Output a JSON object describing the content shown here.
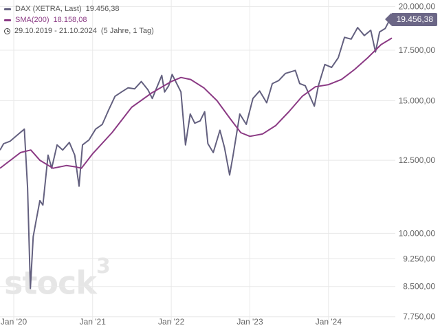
{
  "legend": {
    "series1_label": "DAX (XETRA, Last)",
    "series1_value": "19.456,38",
    "series2_label": "SMA(200)",
    "series2_value": "18.158,08",
    "range_text": "29.10.2019 - 21.10.2024",
    "range_detail": "(5 Jahre, 1 Tag)"
  },
  "last_badge": "19.456,38",
  "watermark": {
    "text": "stock",
    "sup": "3"
  },
  "colors": {
    "price": "#63607f",
    "sma": "#8b3a84",
    "grid": "#e8e8e8",
    "badge": "#6b6686",
    "text": "#555555"
  },
  "chart_data": {
    "type": "line",
    "y_scale": "log",
    "ylim": [
      7600,
      20400
    ],
    "xlim": [
      "2019-10-29",
      "2024-10-21"
    ],
    "y_ticks": [
      7750,
      8500,
      9250,
      10000,
      12500,
      15000,
      17500,
      20000
    ],
    "y_tick_labels": [
      "7.750,00",
      "8.500,00",
      "9.250,00",
      "10.000,00",
      "12.500,00",
      "15.000,00",
      "17.500,00",
      "20.000,00"
    ],
    "x_ticks": [
      "2020-01-01",
      "2021-01-01",
      "2022-01-01",
      "2023-01-01",
      "2024-01-01"
    ],
    "x_tick_labels": [
      "Jan '20",
      "Jan '21",
      "Jan '22",
      "Jan '23",
      "Jan '24"
    ],
    "grid": true,
    "series": [
      {
        "name": "DAX (XETRA, Last)",
        "x": [
          "2019-10-29",
          "2019-11-15",
          "2019-12-15",
          "2020-01-17",
          "2020-02-19",
          "2020-03-05",
          "2020-03-18",
          "2020-03-31",
          "2020-04-15",
          "2020-05-01",
          "2020-05-15",
          "2020-06-08",
          "2020-06-25",
          "2020-07-20",
          "2020-08-15",
          "2020-09-15",
          "2020-10-10",
          "2020-10-30",
          "2020-11-15",
          "2020-12-15",
          "2021-01-15",
          "2021-02-15",
          "2021-03-15",
          "2021-04-15",
          "2021-05-15",
          "2021-06-15",
          "2021-07-15",
          "2021-08-15",
          "2021-09-15",
          "2021-10-05",
          "2021-11-18",
          "2021-12-01",
          "2021-12-20",
          "2022-01-05",
          "2022-02-15",
          "2022-03-08",
          "2022-03-30",
          "2022-04-20",
          "2022-05-15",
          "2022-06-05",
          "2022-06-20",
          "2022-07-15",
          "2022-08-15",
          "2022-09-05",
          "2022-09-29",
          "2022-10-15",
          "2022-11-15",
          "2022-12-15",
          "2023-01-15",
          "2023-02-15",
          "2023-03-20",
          "2023-04-15",
          "2023-05-15",
          "2023-06-15",
          "2023-07-31",
          "2023-08-20",
          "2023-09-15",
          "2023-10-27",
          "2023-11-15",
          "2023-12-15",
          "2024-01-15",
          "2024-02-15",
          "2024-03-15",
          "2024-04-15",
          "2024-05-15",
          "2024-06-15",
          "2024-07-15",
          "2024-08-06",
          "2024-08-25",
          "2024-09-20",
          "2024-10-21"
        ],
        "values": [
          12900,
          13150,
          13250,
          13500,
          13750,
          11500,
          8450,
          9900,
          10450,
          11050,
          10900,
          12700,
          12200,
          13100,
          12900,
          13200,
          12700,
          11550,
          13100,
          13300,
          13750,
          13950,
          14550,
          15200,
          15400,
          15600,
          15550,
          15900,
          15500,
          15100,
          16200,
          15400,
          15700,
          16250,
          15400,
          13100,
          14400,
          14000,
          14100,
          14500,
          13150,
          12800,
          13700,
          13000,
          11950,
          12700,
          14400,
          13950,
          15100,
          15450,
          14900,
          15800,
          15950,
          16300,
          16450,
          15800,
          15700,
          14750,
          15700,
          16750,
          16600,
          17100,
          18200,
          18100,
          18750,
          18300,
          18600,
          17400,
          18500,
          18700,
          19456.38
        ]
      },
      {
        "name": "SMA(200)",
        "x": [
          "2019-10-29",
          "2020-02-01",
          "2020-03-20",
          "2020-05-01",
          "2020-07-01",
          "2020-09-01",
          "2020-10-15",
          "2020-11-10",
          "2021-01-01",
          "2021-04-01",
          "2021-07-01",
          "2021-10-01",
          "2022-01-01",
          "2022-02-15",
          "2022-04-01",
          "2022-06-01",
          "2022-08-01",
          "2022-10-01",
          "2022-11-20",
          "2023-01-01",
          "2023-03-01",
          "2023-05-01",
          "2023-07-01",
          "2023-09-01",
          "2023-11-01",
          "2024-01-01",
          "2024-03-01",
          "2024-05-01",
          "2024-07-01",
          "2024-09-01",
          "2024-10-21"
        ],
        "values": [
          12200,
          12800,
          12900,
          12500,
          12200,
          12300,
          12250,
          12200,
          12750,
          13600,
          14700,
          15350,
          15900,
          16100,
          16000,
          15600,
          15000,
          14200,
          13600,
          13450,
          13550,
          13900,
          14500,
          15200,
          15650,
          15750,
          16000,
          16500,
          17100,
          17800,
          18158.08
        ]
      }
    ]
  }
}
